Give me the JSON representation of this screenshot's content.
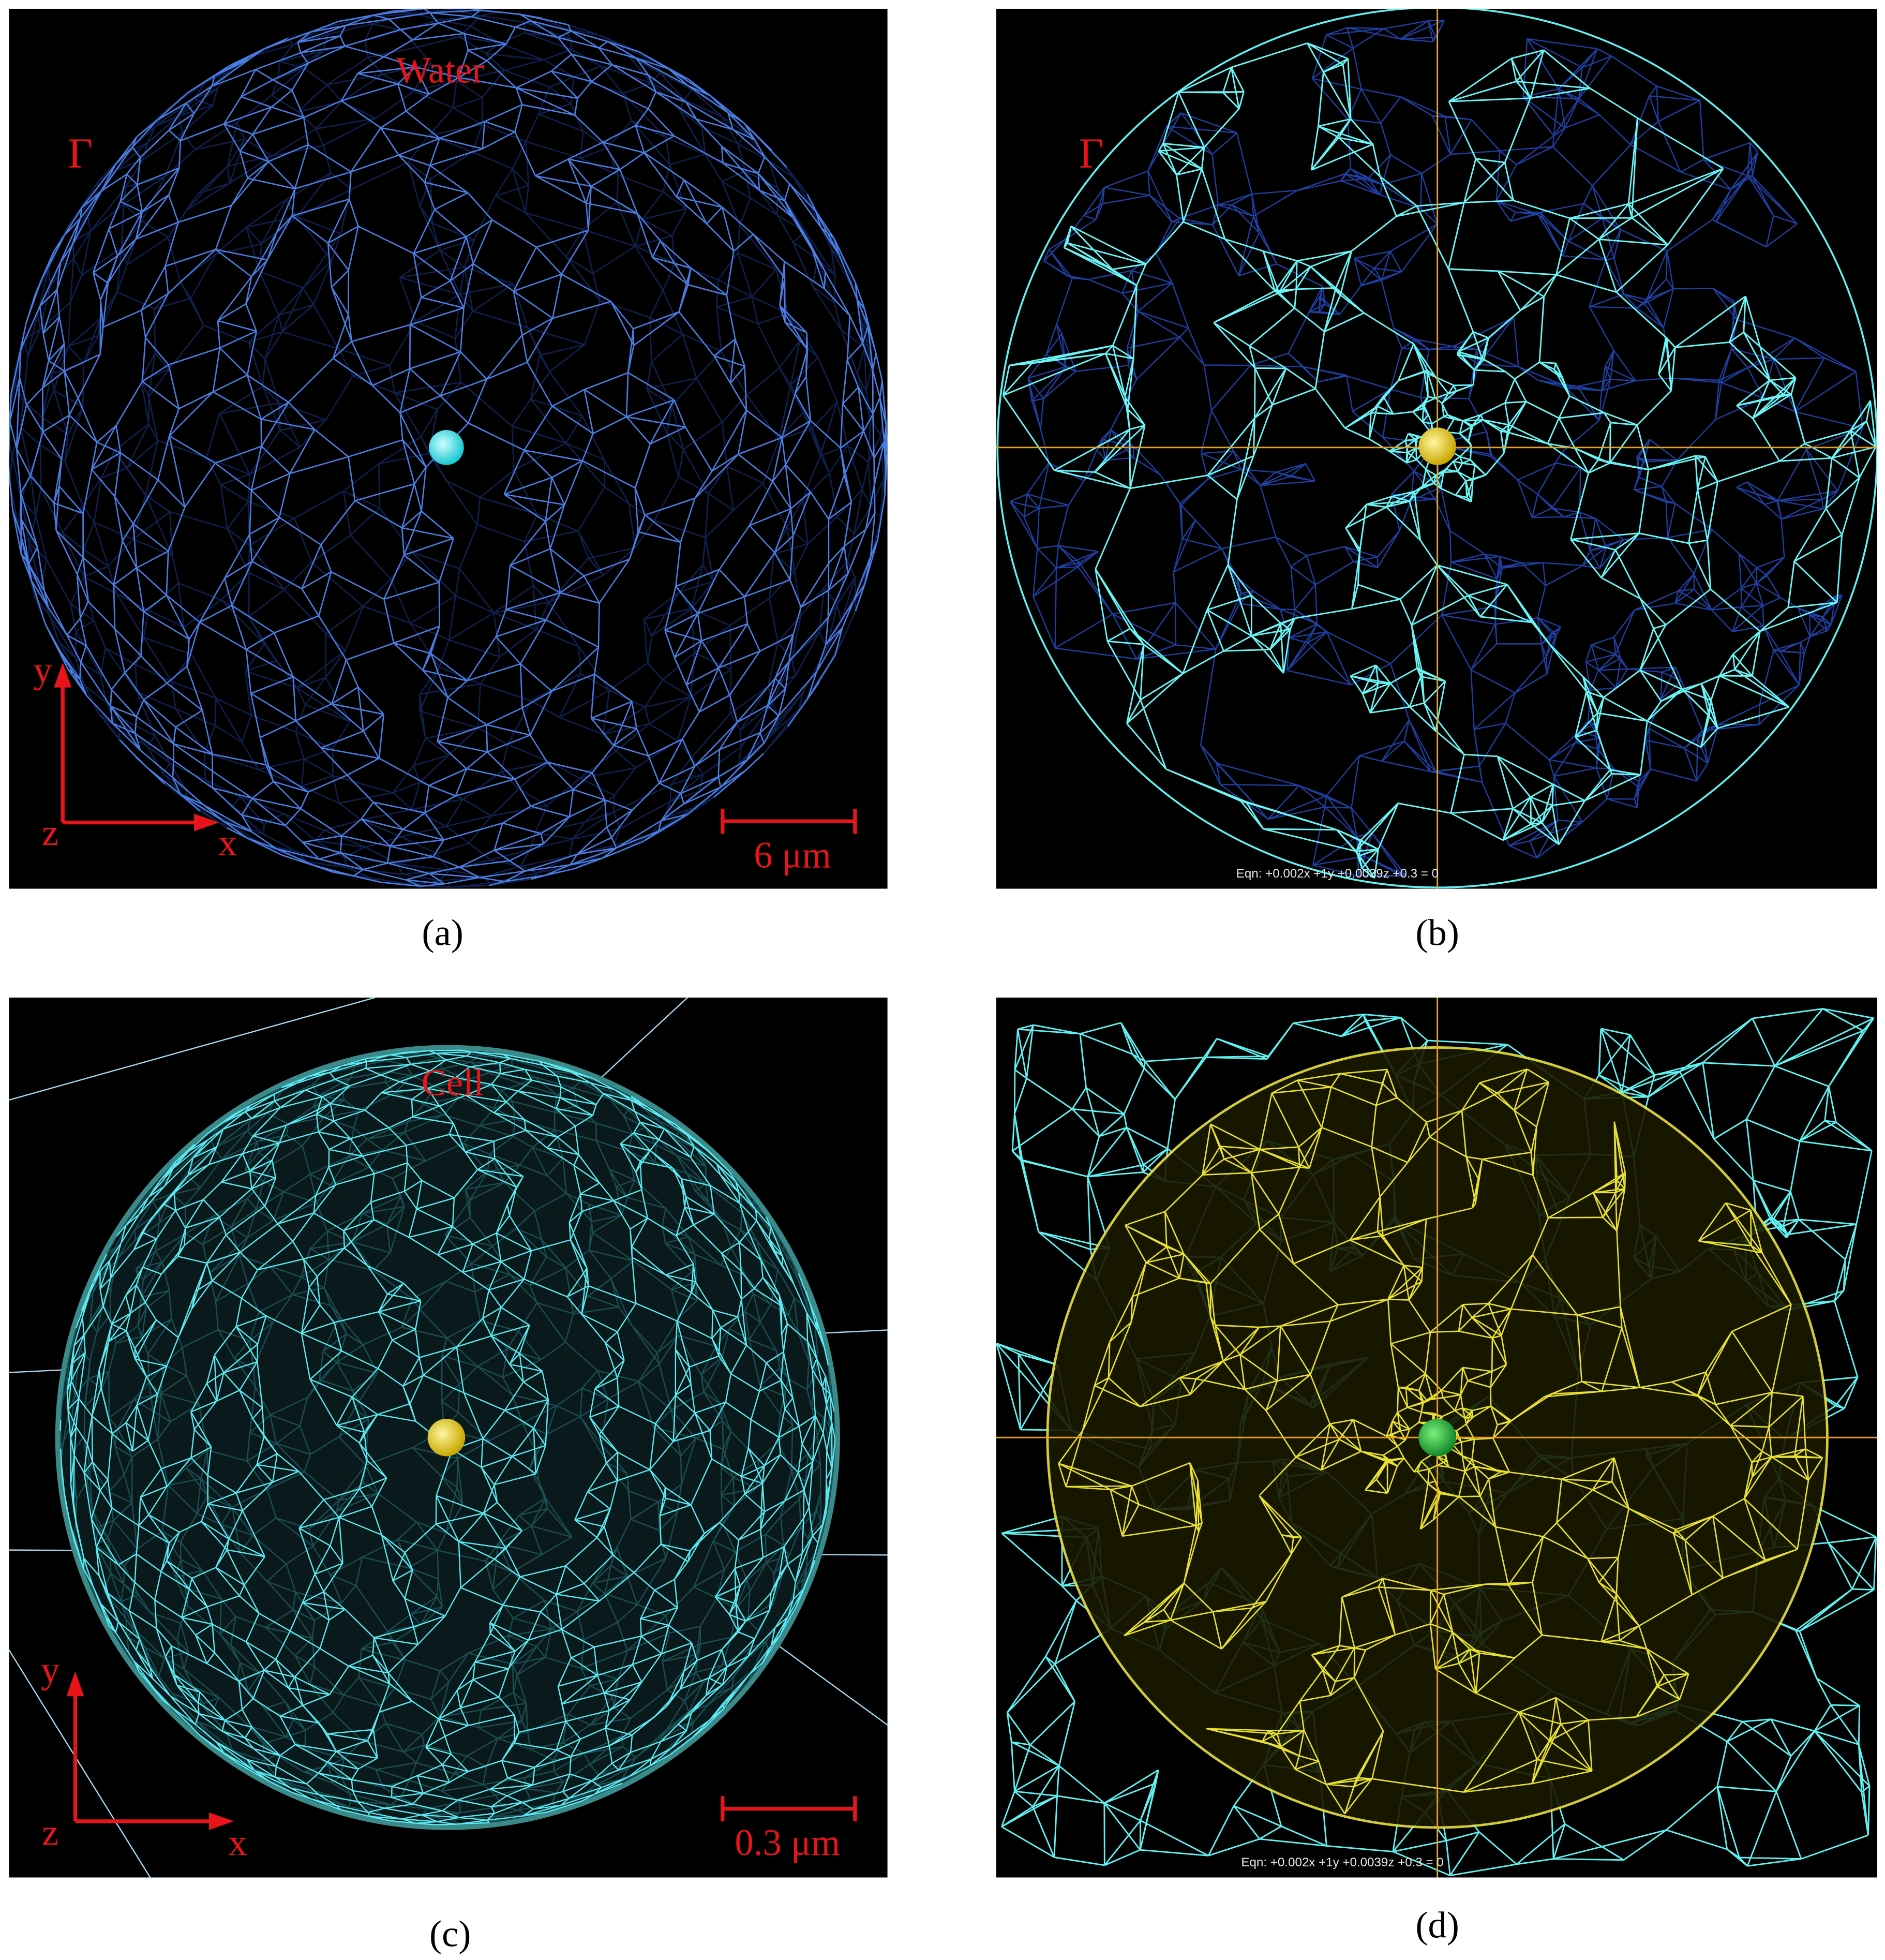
{
  "panels": [
    {
      "label": "(a)",
      "region": "Water",
      "boundary": "Γ",
      "axes": {
        "y": "y",
        "z": "z",
        "x": "x"
      },
      "scale_bar": "6 μm"
    },
    {
      "label": "(b)",
      "boundary": "Γ",
      "equation": "Eqn: +0.002x +1y +0.0039z +0.3 = 0"
    },
    {
      "label": "(c)",
      "region": "Cell",
      "axes": {
        "y": "y",
        "z": "z",
        "x": "x"
      },
      "scale_bar": "0.3 μm"
    },
    {
      "label": "(d)",
      "equation": "Eqn: +0.002x +1y +0.0039z +0.3 = 0"
    }
  ]
}
